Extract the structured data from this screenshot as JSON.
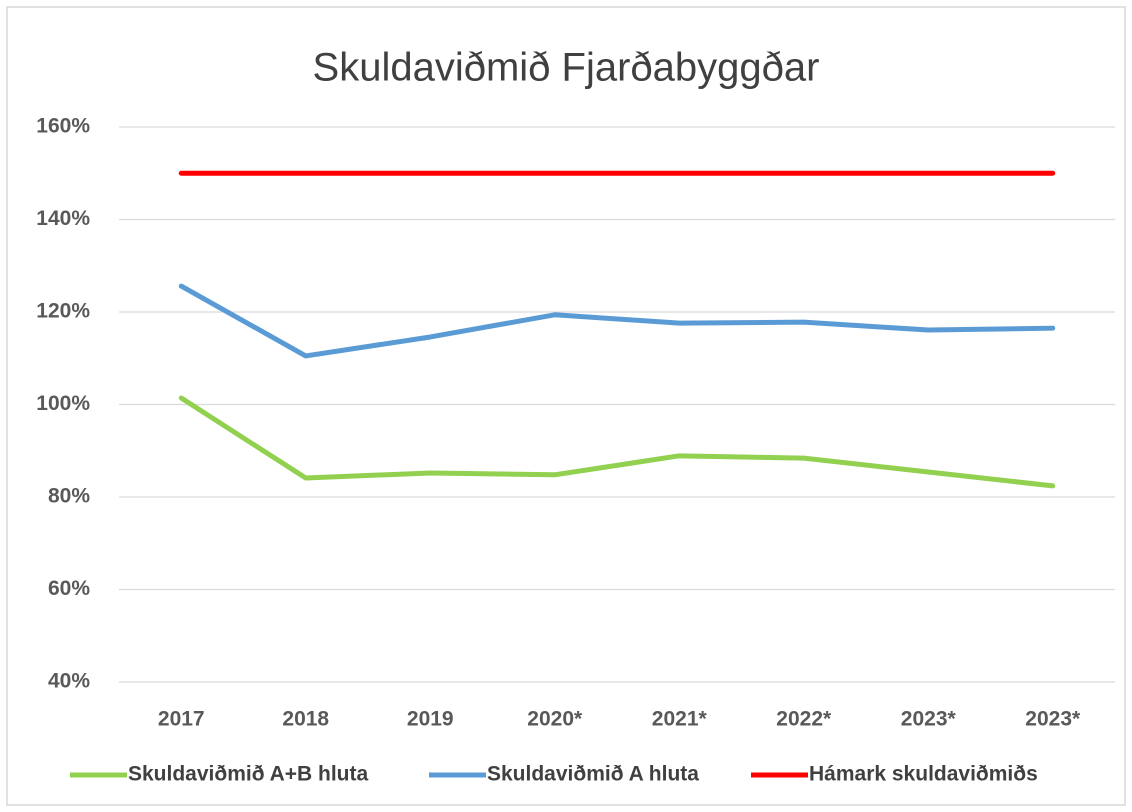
{
  "chart_data": {
    "type": "line",
    "title": "Skuldaviðmið Fjarðabyggðar",
    "categories": [
      "2017",
      "2018",
      "2019",
      "2020*",
      "2021*",
      "2022*",
      "2023*",
      "2023*"
    ],
    "series": [
      {
        "name": "Skuldaviðmið A+B hluta",
        "color": "#92d050",
        "values": [
          101.4,
          84.1,
          85.2,
          84.8,
          88.9,
          88.4,
          85.4,
          82.4
        ]
      },
      {
        "name": "Skuldaviðmið A hluta",
        "color": "#5b9bd5",
        "values": [
          125.6,
          110.5,
          114.6,
          119.4,
          117.6,
          117.8,
          116.1,
          116.5
        ]
      },
      {
        "name": "Hámark skuldaviðmiðs",
        "color": "#ff0000",
        "values": [
          150,
          150,
          150,
          150,
          150,
          150,
          150,
          150
        ]
      }
    ],
    "ylim": [
      40,
      160
    ],
    "yticks": [
      {
        "value": 40,
        "label": "40%"
      },
      {
        "value": 60,
        "label": "60%"
      },
      {
        "value": 80,
        "label": "80%"
      },
      {
        "value": 100,
        "label": "100%"
      },
      {
        "value": 120,
        "label": "120%"
      },
      {
        "value": 140,
        "label": "140%"
      },
      {
        "value": 160,
        "label": "160%"
      }
    ],
    "grid": true,
    "legend": "bottom"
  }
}
